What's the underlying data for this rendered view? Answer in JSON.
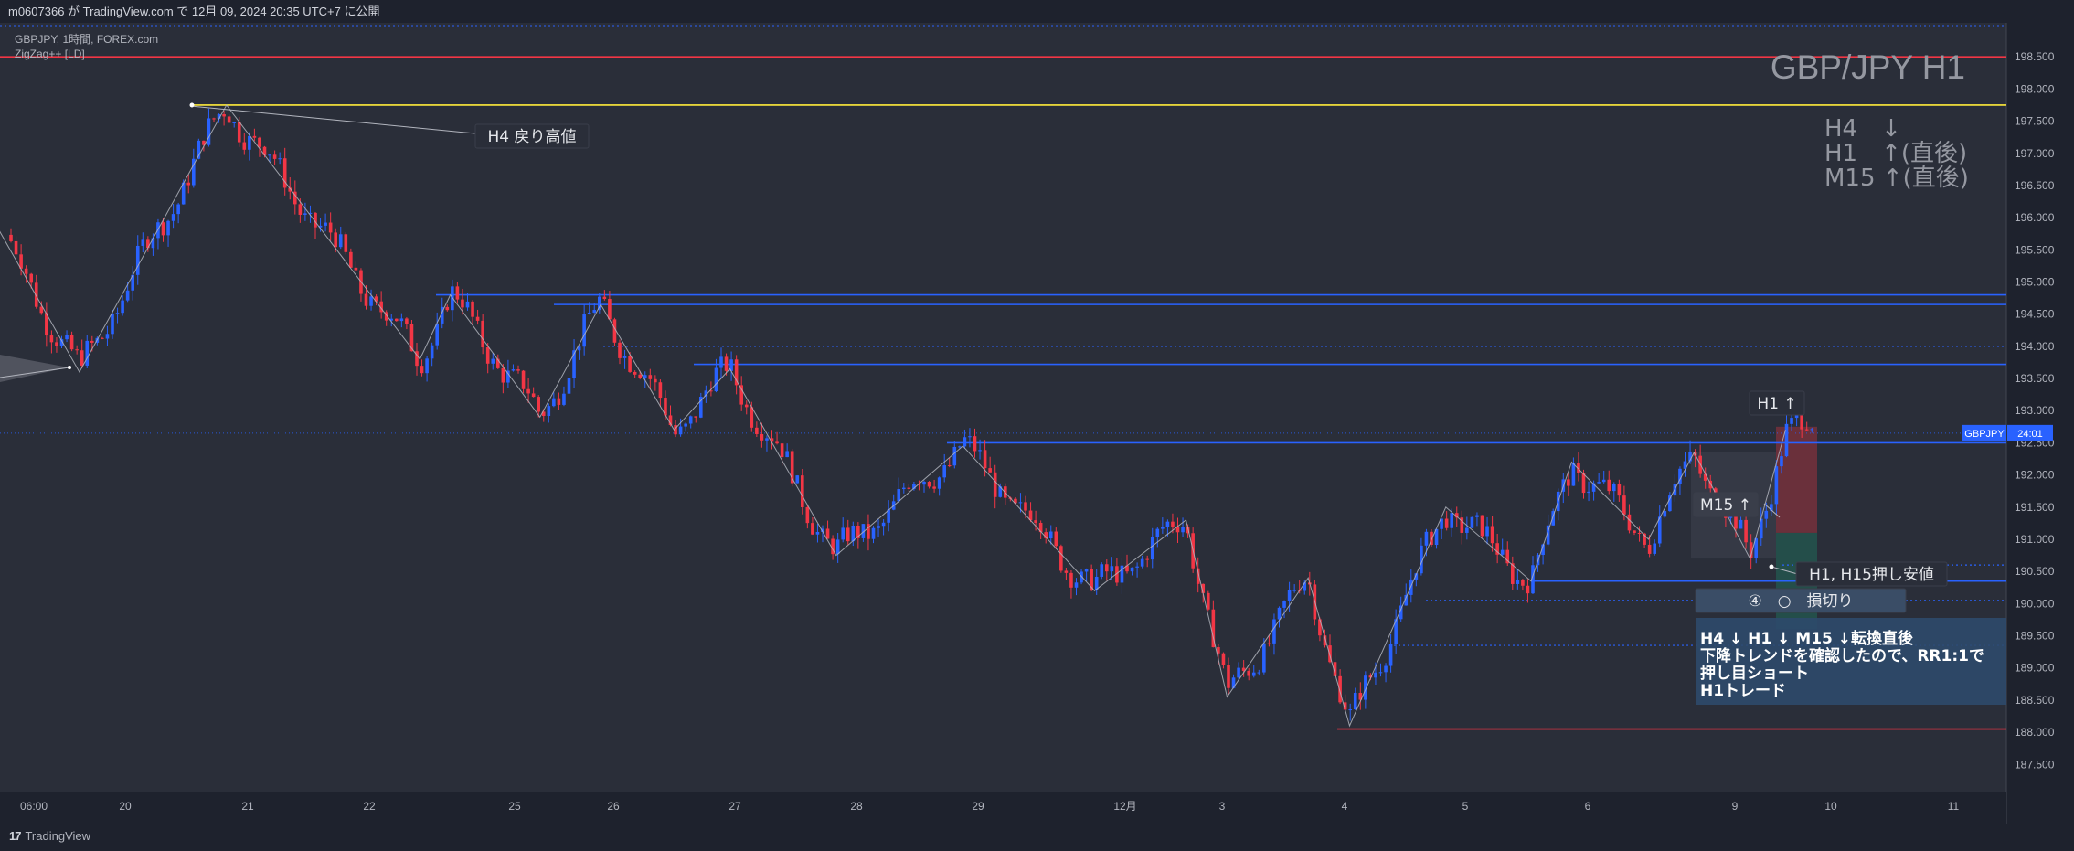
{
  "header": {
    "publish_line": "m0607366 が TradingView.com で 12月 09, 2024 20:35 UTC+7 に公開"
  },
  "legend": {
    "symbol_line": "GBPJPY, 1時間, FOREX.com",
    "indicator_line": "ZigZag++ [LD]"
  },
  "footer": {
    "brand": "TradingView",
    "logo_glyph": "17"
  },
  "colors": {
    "background": "#2a2e39",
    "up_candle": "#2962ff",
    "down_candle": "#f23645",
    "support_line": "#2962ff",
    "red_line": "#f23645",
    "yellow_line": "#ffeb3b",
    "zigzag": "#b2b5be",
    "note_box": "#2e4a6b",
    "price_badge": "#2962ff"
  },
  "chart_data": {
    "type": "candlestick",
    "symbol": "GBPJPY",
    "timeframe": "H1",
    "title": "GBP/JPY H1",
    "ylim": [
      187.25,
      199.0
    ],
    "y_ticks": [
      "198.500",
      "198.000",
      "197.500",
      "197.000",
      "196.500",
      "196.000",
      "195.500",
      "195.000",
      "194.500",
      "194.000",
      "193.500",
      "193.000",
      "192.500",
      "192.000",
      "191.500",
      "191.000",
      "190.500",
      "190.000",
      "189.500",
      "189.000",
      "188.500",
      "188.000",
      "187.500"
    ],
    "x_tick_labels": [
      "06:00",
      "20",
      "21",
      "22",
      "25",
      "26",
      "27",
      "28",
      "29",
      "12月",
      "3",
      "4",
      "5",
      "6",
      "9",
      "10",
      "11"
    ],
    "current_price_label": {
      "symbol": "GBPJPY",
      "countdown": "24:01",
      "price": 192.65
    },
    "zigzag_points": [
      {
        "x": "19 04:00",
        "y": 196.1
      },
      {
        "x": "19 22:00",
        "y": 193.6
      },
      {
        "x": "20 20:00",
        "y": 197.75
      },
      {
        "x": "22 10:00",
        "y": 193.8
      },
      {
        "x": "22 16:00",
        "y": 194.8
      },
      {
        "x": "25 05:00",
        "y": 192.9
      },
      {
        "x": "25 17:00",
        "y": 194.65
      },
      {
        "x": "26 12:00",
        "y": 192.7
      },
      {
        "x": "26 23:00",
        "y": 193.65
      },
      {
        "x": "27 20:00",
        "y": 190.75
      },
      {
        "x": "28 21:00",
        "y": 192.45
      },
      {
        "x": "29 23:00",
        "y": 190.2
      },
      {
        "x": "12/2 12:00",
        "y": 191.3
      },
      {
        "x": "12/3 01:00",
        "y": 188.55
      },
      {
        "x": "12/3 17:00",
        "y": 190.4
      },
      {
        "x": "12/4 01:00",
        "y": 188.1
      },
      {
        "x": "12/4 20:00",
        "y": 191.5
      },
      {
        "x": "12/5 13:00",
        "y": 190.35
      },
      {
        "x": "12/5 21:00",
        "y": 192.2
      },
      {
        "x": "12/6 12:00",
        "y": 191.0
      },
      {
        "x": "12/6 21:00",
        "y": 192.35
      },
      {
        "x": "12/9 03:00",
        "y": 190.7
      },
      {
        "x": "12/9 10:00",
        "y": 192.7
      }
    ],
    "horizontal_lines": [
      {
        "name": "top-red",
        "price": 198.5,
        "color": "red",
        "style": "solid"
      },
      {
        "name": "h4-pullback-high",
        "price": 197.75,
        "color": "yellow",
        "style": "solid"
      },
      {
        "name": "resistance-1",
        "price": 194.8,
        "color": "blue",
        "style": "solid"
      },
      {
        "name": "resistance-2",
        "price": 194.65,
        "color": "blue",
        "style": "solid"
      },
      {
        "name": "resistance-3",
        "price": 193.72,
        "color": "blue",
        "style": "solid"
      },
      {
        "name": "resistance-4",
        "price": 192.5,
        "color": "blue",
        "style": "solid"
      },
      {
        "name": "support-1",
        "price": 190.35,
        "color": "blue",
        "style": "solid"
      },
      {
        "name": "bottom-red",
        "price": 188.05,
        "color": "red",
        "style": "solid"
      },
      {
        "name": "dotted-1",
        "price": 194.0,
        "color": "blue",
        "style": "dotted"
      },
      {
        "name": "dotted-2",
        "price": 190.6,
        "color": "blue",
        "style": "dotted"
      },
      {
        "name": "dotted-3",
        "price": 190.05,
        "color": "blue",
        "style": "dotted"
      },
      {
        "name": "dotted-4",
        "price": 189.35,
        "color": "blue",
        "style": "dotted"
      }
    ],
    "trade_setup": {
      "entry": 191.1,
      "stop": 192.75,
      "target": 189.6
    }
  },
  "annotations": {
    "title": "GBP/JPY H1",
    "trend_lines": [
      "H4　↓",
      "H1　↑(直後)",
      "M15 ↑(直後)"
    ],
    "h4_pullback": "H4 戻り高値",
    "h1_up": "H1 ↑",
    "m15_up": "M15 ↑",
    "h1_h15_low": "H1, H15押し安値",
    "stop_loss": "④　○　損切り",
    "note_lines": [
      "H4 ↓ H1 ↓ M15 ↓転換直後",
      "下降トレンドを確認したので、RR1:1で",
      "押し目ショート",
      "H1トレード"
    ]
  }
}
